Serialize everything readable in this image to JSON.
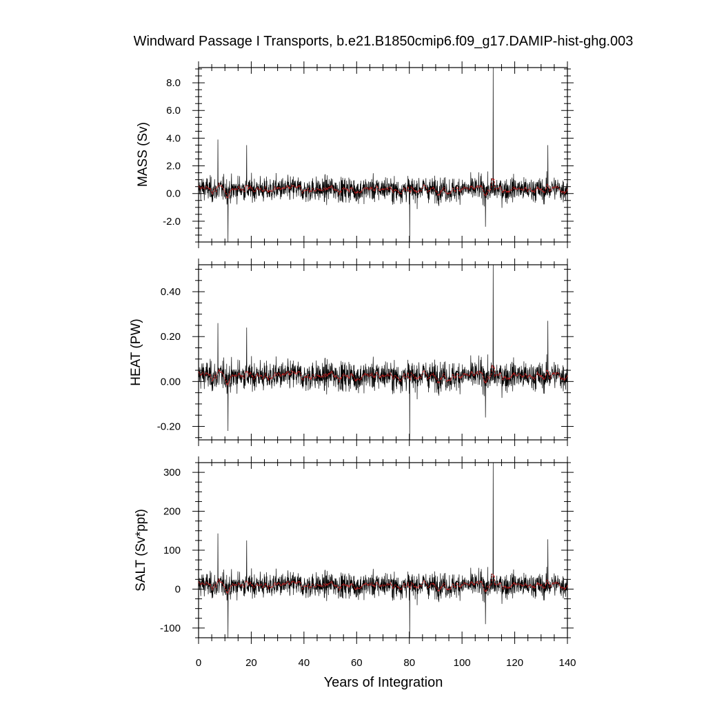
{
  "chart_data": {
    "type": "line",
    "title": "Windward Passage I Transports, b.e21.B1850cmip6.f09_g17.DAMIP-hist-ghg.003",
    "xlabel": "Years of Integration",
    "xlim": [
      0,
      140
    ],
    "xticks": [
      "0",
      "20",
      "40",
      "60",
      "80",
      "100",
      "120",
      "140"
    ],
    "grid": false,
    "colors": {
      "monthly": "#000000",
      "annual_mean": "#cc2222"
    },
    "panels": [
      {
        "ylabel": "MASS (Sv)",
        "ylim": [
          -3.5,
          9.1
        ],
        "yticks": [
          {
            "value": 8.0,
            "label": "8.0"
          },
          {
            "value": 6.0,
            "label": "6.0"
          },
          {
            "value": 4.0,
            "label": "4.0"
          },
          {
            "value": 2.0,
            "label": "2.0"
          },
          {
            "value": 0.0,
            "label": "0.0"
          },
          {
            "value": -2.0,
            "label": "-2.0"
          }
        ],
        "mean": 0.3,
        "noise_sd": 0.75,
        "spikes": [
          {
            "x": 7.3,
            "y": 3.9
          },
          {
            "x": 11.2,
            "y": -3.5
          },
          {
            "x": 18.3,
            "y": 3.5
          },
          {
            "x": 80.1,
            "y": -3.5
          },
          {
            "x": 108.9,
            "y": -2.4
          },
          {
            "x": 111.8,
            "y": 9.1
          },
          {
            "x": 132.6,
            "y": 3.5
          }
        ]
      },
      {
        "ylabel": "HEAT (PW)",
        "ylim": [
          -0.26,
          0.52
        ],
        "yticks": [
          {
            "value": 0.4,
            "label": "0.40"
          },
          {
            "value": 0.2,
            "label": "0.20"
          },
          {
            "value": 0.0,
            "label": "0.00"
          },
          {
            "value": -0.2,
            "label": "-0.20"
          }
        ],
        "mean": 0.025,
        "noise_sd": 0.055,
        "spikes": [
          {
            "x": 7.3,
            "y": 0.26
          },
          {
            "x": 11.2,
            "y": -0.22
          },
          {
            "x": 18.3,
            "y": 0.24
          },
          {
            "x": 80.1,
            "y": -0.26
          },
          {
            "x": 108.9,
            "y": -0.16
          },
          {
            "x": 111.8,
            "y": 0.52
          },
          {
            "x": 132.6,
            "y": 0.27
          }
        ]
      },
      {
        "ylabel": "SALT (Sv*ppt)",
        "ylim": [
          -125,
          325
        ],
        "yticks": [
          {
            "value": 300,
            "label": "300"
          },
          {
            "value": 200,
            "label": "200"
          },
          {
            "value": 100,
            "label": "100"
          },
          {
            "value": 0,
            "label": "0"
          },
          {
            "value": -100,
            "label": "-100"
          }
        ],
        "mean": 10,
        "noise_sd": 27,
        "spikes": [
          {
            "x": 7.3,
            "y": 143
          },
          {
            "x": 11.2,
            "y": -125
          },
          {
            "x": 18.3,
            "y": 125
          },
          {
            "x": 80.1,
            "y": -125
          },
          {
            "x": 108.9,
            "y": -90
          },
          {
            "x": 111.8,
            "y": 325
          },
          {
            "x": 132.6,
            "y": 128
          }
        ]
      }
    ]
  }
}
